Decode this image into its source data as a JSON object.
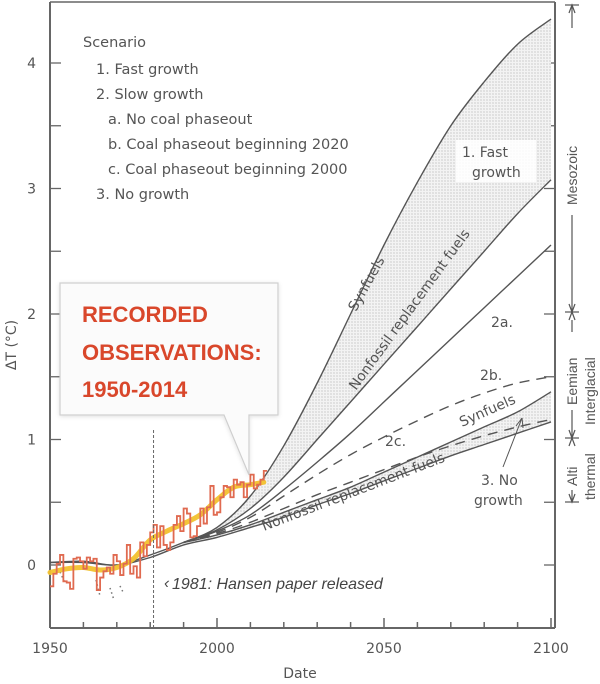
{
  "chart_data": {
    "type": "line",
    "title": "",
    "xlabel": "Date",
    "ylabel": "ΔT (°C)",
    "xlim": [
      1950,
      2100
    ],
    "ylim": [
      -0.5,
      4.4
    ],
    "x_ticks": [
      1950,
      2000,
      2050,
      2100
    ],
    "x_tick_labels": [
      "1950",
      "2000",
      "2050",
      "2100"
    ],
    "y_ticks": [
      0,
      1,
      2,
      3,
      4
    ],
    "y_tick_labels": [
      "0",
      "1",
      "2",
      "3",
      "4"
    ],
    "grid": false,
    "legend": {
      "position": "top-left",
      "title": "Scenario",
      "entries": [
        "1. Fast growth",
        "2. Slow growth",
        "a. No coal phaseout",
        "b. Coal phaseout beginning 2020",
        "c. Coal phaseout beginning 2000",
        "3. No growth"
      ]
    },
    "series": [
      {
        "name": "Fast growth - Synfuels",
        "style": "solid",
        "x": [
          1950,
          1960,
          1970,
          1980,
          1990,
          2000,
          2010,
          2020,
          2030,
          2040,
          2050,
          2060,
          2070,
          2080,
          2090,
          2100
        ],
        "y": [
          0.02,
          0.03,
          0,
          0.08,
          0.18,
          0.3,
          0.55,
          0.95,
          1.45,
          2.0,
          2.55,
          3.05,
          3.5,
          3.85,
          4.15,
          4.35
        ]
      },
      {
        "name": "Fast growth - Nonfossil replacement fuels",
        "style": "solid",
        "x": [
          1990,
          2000,
          2010,
          2020,
          2030,
          2040,
          2050,
          2060,
          2070,
          2080,
          2090,
          2100
        ],
        "y": [
          0.18,
          0.28,
          0.45,
          0.7,
          1.0,
          1.3,
          1.6,
          1.9,
          2.2,
          2.5,
          2.8,
          3.07
        ]
      },
      {
        "name": "2a. No coal phaseout",
        "style": "solid",
        "x": [
          1990,
          2000,
          2010,
          2020,
          2030,
          2040,
          2050,
          2060,
          2070,
          2080,
          2090,
          2100
        ],
        "y": [
          0.18,
          0.27,
          0.4,
          0.6,
          0.82,
          1.05,
          1.3,
          1.55,
          1.8,
          2.05,
          2.3,
          2.55
        ]
      },
      {
        "name": "2b. Coal phaseout beginning 2020",
        "style": "dashed",
        "x": [
          1990,
          2000,
          2010,
          2020,
          2030,
          2040,
          2050,
          2060,
          2070,
          2080,
          2090,
          2100
        ],
        "y": [
          0.18,
          0.26,
          0.38,
          0.55,
          0.72,
          0.88,
          1.02,
          1.15,
          1.27,
          1.37,
          1.45,
          1.5
        ]
      },
      {
        "name": "2c. Coal phaseout beginning 2000",
        "style": "dashed",
        "x": [
          1990,
          2000,
          2010,
          2020,
          2030,
          2040,
          2050,
          2060,
          2070,
          2080,
          2090,
          2100
        ],
        "y": [
          0.18,
          0.25,
          0.34,
          0.45,
          0.56,
          0.66,
          0.76,
          0.86,
          0.95,
          1.03,
          1.1,
          1.16
        ]
      },
      {
        "name": "No growth - Synfuels",
        "style": "solid",
        "x": [
          1990,
          2000,
          2010,
          2020,
          2030,
          2040,
          2050,
          2060,
          2070,
          2080,
          2090,
          2100
        ],
        "y": [
          0.18,
          0.24,
          0.32,
          0.42,
          0.52,
          0.62,
          0.74,
          0.86,
          0.98,
          1.1,
          1.22,
          1.38
        ]
      },
      {
        "name": "No growth - Nonfossil replacement fuels",
        "style": "solid",
        "x": [
          1950,
          1960,
          1970,
          1980,
          1990,
          2000,
          2010,
          2020,
          2030,
          2040,
          2050,
          2060,
          2070,
          2080,
          2090,
          2100
        ],
        "y": [
          0.02,
          0.02,
          0,
          0.06,
          0.16,
          0.22,
          0.3,
          0.38,
          0.48,
          0.57,
          0.67,
          0.77,
          0.87,
          0.96,
          1.05,
          1.14
        ]
      },
      {
        "name": "Recorded observations (annual)",
        "style": "step",
        "color": "#e06a50",
        "x": [
          1950,
          1951,
          1952,
          1953,
          1954,
          1955,
          1956,
          1957,
          1958,
          1959,
          1960,
          1961,
          1962,
          1963,
          1964,
          1965,
          1966,
          1967,
          1968,
          1969,
          1970,
          1971,
          1972,
          1973,
          1974,
          1975,
          1976,
          1977,
          1978,
          1979,
          1980,
          1981,
          1982,
          1983,
          1984,
          1985,
          1986,
          1987,
          1988,
          1989,
          1990,
          1991,
          1992,
          1993,
          1994,
          1995,
          1996,
          1997,
          1998,
          1999,
          2000,
          2001,
          2002,
          2003,
          2004,
          2005,
          2006,
          2007,
          2008,
          2009,
          2010,
          2011,
          2012,
          2013,
          2014
        ],
        "y": [
          -0.17,
          -0.07,
          0.01,
          0.08,
          -0.13,
          -0.14,
          -0.19,
          0.05,
          0.06,
          0.03,
          -0.03,
          0.06,
          0.03,
          0.05,
          -0.2,
          -0.1,
          -0.05,
          -0.02,
          -0.07,
          0.08,
          0.03,
          -0.08,
          0.01,
          0.16,
          -0.07,
          -0.01,
          -0.1,
          0.18,
          0.07,
          0.16,
          0.26,
          0.32,
          0.14,
          0.31,
          0.16,
          0.12,
          0.18,
          0.32,
          0.39,
          0.27,
          0.45,
          0.41,
          0.22,
          0.23,
          0.31,
          0.45,
          0.33,
          0.46,
          0.63,
          0.4,
          0.42,
          0.54,
          0.63,
          0.62,
          0.54,
          0.68,
          0.64,
          0.66,
          0.54,
          0.64,
          0.72,
          0.61,
          0.64,
          0.68,
          0.75
        ]
      },
      {
        "name": "Recorded observations (smoothed)",
        "style": "smooth",
        "color": "#f2c12e",
        "x": [
          1950,
          1955,
          1960,
          1965,
          1970,
          1975,
          1980,
          1985,
          1990,
          1995,
          2000,
          2005,
          2010,
          2014
        ],
        "y": [
          -0.06,
          -0.03,
          -0.02,
          -0.04,
          -0.02,
          0.05,
          0.2,
          0.27,
          0.33,
          0.4,
          0.52,
          0.62,
          0.64,
          0.66
        ]
      }
    ],
    "annotations": [
      {
        "text": "1. Fast\ngrowth",
        "x": 2090,
        "y": 3.2
      },
      {
        "text": "Synfuels",
        "curve": "fast-synfuels"
      },
      {
        "text": "Nonfossil replacement fuels",
        "curve": "fast-nonfossil"
      },
      {
        "text": "2a.",
        "x": 2093,
        "y": 1.9
      },
      {
        "text": "2b.",
        "x": 2093,
        "y": 1.55
      },
      {
        "text": "2c.",
        "x": 2061,
        "y": 1.05
      },
      {
        "text": "Synfuels",
        "curve": "nogrowth-synfuels"
      },
      {
        "text": "Nonfossil replacement fuels",
        "curve": "nogrowth-nonfossil"
      },
      {
        "text": "3. No\ngrowth",
        "x": 2091,
        "y": 0.6
      },
      {
        "text": "RECORDED OBSERVATIONS: 1950-2014",
        "type": "callout"
      },
      {
        "text": "1981: Hansen paper released",
        "x": 1981,
        "type": "vline"
      }
    ],
    "right_scale": {
      "periods": [
        {
          "label": "Mesozoic",
          "from": 2.0,
          "to": 4.6
        },
        {
          "label": "Eemian Interglacial",
          "from": 1.0,
          "to": 2.0
        },
        {
          "label": "Altithermal",
          "from": 0.5,
          "to": 1.0
        }
      ]
    }
  }
}
